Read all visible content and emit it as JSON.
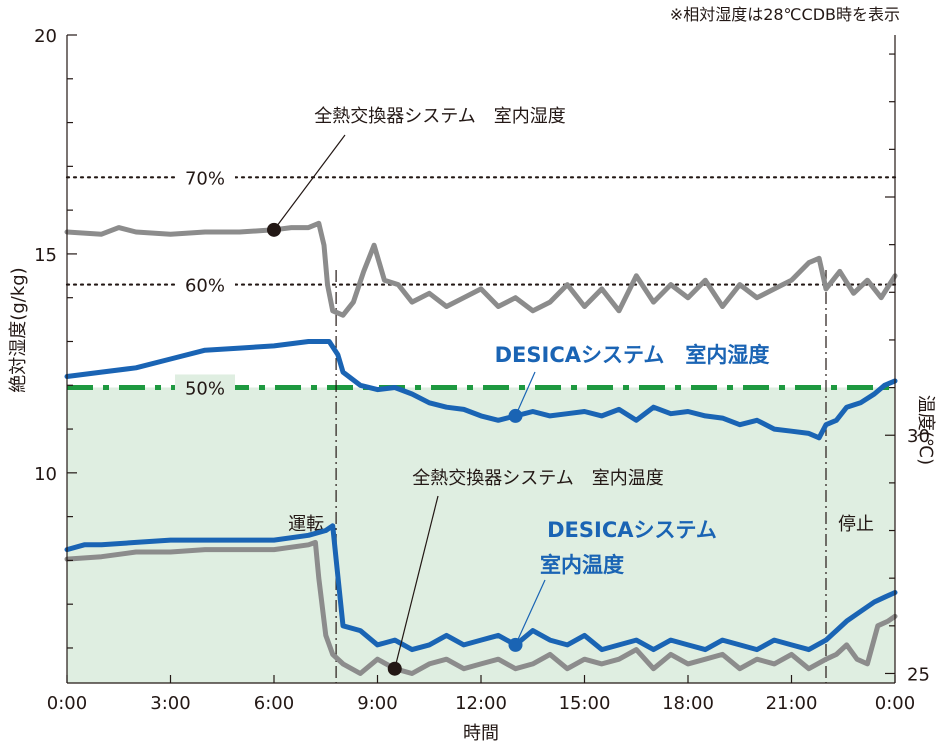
{
  "chart_data": {
    "type": "line",
    "note": "※相対湿度は28℃CDB時を表示",
    "xlabel": "時間",
    "ylabel_left": "絶対湿度(g/kg)",
    "ylabel_right": "温度(℃)",
    "x_ticks": [
      "0:00",
      "3:00",
      "6:00",
      "9:00",
      "12:00",
      "15:00",
      "18:00",
      "21:00",
      "0:00"
    ],
    "x_range_hours": [
      0,
      24
    ],
    "y_left_ticks": [
      "10",
      "15",
      "20"
    ],
    "y_left_range": [
      5.2,
      20
    ],
    "y_right_ticks": [
      "25",
      "30"
    ],
    "y_right_range": [
      24.8,
      38.4
    ],
    "rh_lines": [
      {
        "label": "70%",
        "value": 16.75,
        "color": "#231815",
        "style": "dotted"
      },
      {
        "label": "60%",
        "value": 14.3,
        "color": "#231815",
        "style": "dotted"
      },
      {
        "label": "50%",
        "value": 11.95,
        "color": "#1e9940",
        "style": "dashdot"
      }
    ],
    "comfort_zone_color": "#dfeee1",
    "events": [
      {
        "label": "運転",
        "x": 7.8
      },
      {
        "label": "停止",
        "x": 22.0
      }
    ],
    "series": [
      {
        "name": "全熱交換器システム 室内湿度",
        "axis": "left",
        "color": "#8c8c8c",
        "x": [
          0,
          1,
          1.5,
          2,
          3,
          4,
          5,
          6,
          6.5,
          7,
          7.3,
          7.45,
          7.55,
          7.7,
          8,
          8.3,
          8.6,
          8.9,
          9.2,
          9.6,
          10,
          10.5,
          11,
          11.5,
          12,
          12.5,
          13,
          13.5,
          14,
          14.5,
          15,
          15.5,
          16,
          16.5,
          17,
          17.5,
          18,
          18.5,
          19,
          19.5,
          20,
          20.5,
          21,
          21.5,
          21.8,
          22,
          22.4,
          22.8,
          23.2,
          23.6,
          24
        ],
        "y": [
          15.5,
          15.45,
          15.6,
          15.5,
          15.45,
          15.5,
          15.5,
          15.55,
          15.6,
          15.6,
          15.7,
          15.2,
          14.3,
          13.7,
          13.6,
          13.9,
          14.6,
          15.2,
          14.4,
          14.3,
          13.9,
          14.1,
          13.8,
          14.0,
          14.2,
          13.8,
          14.0,
          13.7,
          13.9,
          14.3,
          13.8,
          14.2,
          13.7,
          14.5,
          13.9,
          14.3,
          14.0,
          14.4,
          13.8,
          14.3,
          14.0,
          14.2,
          14.4,
          14.8,
          14.9,
          14.2,
          14.6,
          14.1,
          14.4,
          14.0,
          14.5
        ]
      },
      {
        "name": "DESICAシステム 室内湿度",
        "axis": "left",
        "color": "#1a64b4",
        "x": [
          0,
          1,
          2,
          3,
          4,
          5,
          6,
          7,
          7.6,
          7.85,
          8,
          8.5,
          9,
          9.5,
          10,
          10.5,
          11,
          11.5,
          12,
          12.5,
          13,
          13.5,
          14,
          14.5,
          15,
          15.5,
          16,
          16.5,
          17,
          17.5,
          18,
          18.5,
          19,
          19.5,
          20,
          20.5,
          21,
          21.5,
          21.8,
          22,
          22.3,
          22.6,
          23,
          23.4,
          23.7,
          24
        ],
        "y": [
          12.2,
          12.3,
          12.4,
          12.6,
          12.8,
          12.85,
          12.9,
          13.0,
          13.0,
          12.7,
          12.3,
          12.0,
          11.9,
          11.95,
          11.8,
          11.6,
          11.5,
          11.45,
          11.3,
          11.2,
          11.3,
          11.4,
          11.3,
          11.35,
          11.4,
          11.3,
          11.45,
          11.2,
          11.5,
          11.35,
          11.4,
          11.3,
          11.25,
          11.1,
          11.2,
          11.0,
          10.95,
          10.9,
          10.8,
          11.1,
          11.2,
          11.5,
          11.6,
          11.8,
          12.0,
          12.1
        ]
      },
      {
        "name": "全熱交換器システム 室内温度",
        "axis": "right",
        "color": "#8c8c8c",
        "x": [
          0,
          1,
          2,
          3,
          4,
          5,
          6,
          7,
          7.2,
          7.3,
          7.5,
          7.7,
          8,
          8.5,
          9,
          9.5,
          10,
          10.5,
          11,
          11.5,
          12,
          12.5,
          13,
          13.5,
          14,
          14.5,
          15,
          15.5,
          16,
          16.5,
          17,
          17.5,
          18,
          18.5,
          19,
          19.5,
          20,
          20.5,
          21,
          21.5,
          22,
          22.3,
          22.6,
          22.9,
          23.2,
          23.5,
          23.8,
          24
        ],
        "y": [
          27.4,
          27.45,
          27.55,
          27.55,
          27.6,
          27.6,
          27.6,
          27.7,
          27.75,
          27.0,
          25.8,
          25.4,
          25.2,
          25.0,
          25.3,
          25.1,
          25.0,
          25.2,
          25.3,
          25.1,
          25.2,
          25.3,
          25.1,
          25.2,
          25.4,
          25.1,
          25.3,
          25.2,
          25.3,
          25.5,
          25.1,
          25.4,
          25.2,
          25.3,
          25.4,
          25.1,
          25.3,
          25.2,
          25.4,
          25.1,
          25.3,
          25.4,
          25.6,
          25.3,
          25.2,
          26.0,
          26.1,
          26.2
        ]
      },
      {
        "name": "DESICAシステム 室内温度",
        "axis": "right",
        "color": "#1a64b4",
        "x": [
          0,
          0.5,
          1,
          2,
          3,
          4,
          5,
          6,
          7,
          7.5,
          7.7,
          7.8,
          8,
          8.5,
          9,
          9.5,
          10,
          10.5,
          11,
          11.5,
          12,
          12.5,
          13,
          13.5,
          14,
          14.5,
          15,
          15.5,
          16,
          16.5,
          17,
          17.5,
          18,
          18.5,
          19,
          19.5,
          20,
          20.5,
          21,
          21.5,
          22,
          22.3,
          22.6,
          23,
          23.4,
          23.7,
          24
        ],
        "y": [
          27.6,
          27.7,
          27.7,
          27.75,
          27.8,
          27.8,
          27.8,
          27.8,
          27.9,
          28.0,
          28.1,
          27.4,
          26.0,
          25.9,
          25.6,
          25.7,
          25.5,
          25.6,
          25.8,
          25.6,
          25.7,
          25.8,
          25.6,
          25.9,
          25.7,
          25.6,
          25.8,
          25.5,
          25.6,
          25.7,
          25.5,
          25.7,
          25.6,
          25.5,
          25.7,
          25.6,
          25.5,
          25.7,
          25.6,
          25.5,
          25.7,
          25.9,
          26.1,
          26.3,
          26.5,
          26.6,
          26.7
        ]
      }
    ],
    "annotations": [
      {
        "text": "全熱交換器システム　室内湿度",
        "style": "gray",
        "series": 0,
        "x": 6.1
      },
      {
        "text": "DESICAシステム　室内湿度",
        "style": "blue",
        "series": 1,
        "x": 13.1
      },
      {
        "text": "全熱交換器システム　室内温度",
        "style": "gray",
        "series": 2,
        "x": 9.5
      },
      {
        "text": "DESICAシステム",
        "style": "blue",
        "series": 3,
        "x": 13.1
      },
      {
        "text": "室内温度",
        "style": "blue",
        "series": 3,
        "x": 13.1
      }
    ]
  }
}
